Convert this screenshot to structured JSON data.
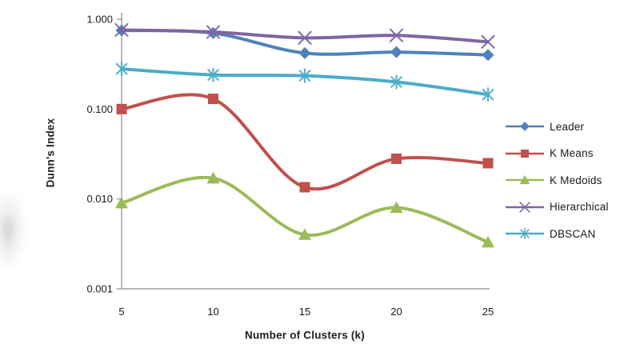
{
  "figure": {
    "background_color": "#ffffff",
    "axis_color": "#8c8c8c",
    "text_color": "#1a1a1a"
  },
  "chart_data": {
    "type": "line",
    "title": "",
    "xlabel": "Number of Clusters (k)",
    "ylabel": "Dunn's Index",
    "x_categories": [
      "5",
      "10",
      "15",
      "20",
      "25"
    ],
    "x_values": [
      5,
      10,
      15,
      20,
      25
    ],
    "y_scale": "log",
    "ylim": [
      0.001,
      1.0
    ],
    "y_ticks": [
      {
        "value": 1.0,
        "label": "1.000"
      },
      {
        "value": 0.1,
        "label": "0.100"
      },
      {
        "value": 0.01,
        "label": "0.010"
      },
      {
        "value": 0.001,
        "label": "0.001"
      }
    ],
    "grid": false,
    "legend_position": "right",
    "line_style": "smooth",
    "series": [
      {
        "name": "Leader",
        "color": "#4F81BD",
        "marker": "diamond",
        "values": [
          0.75,
          0.7,
          0.42,
          0.43,
          0.4
        ]
      },
      {
        "name": "K Means",
        "color": "#C0504D",
        "marker": "square",
        "values": [
          0.1,
          0.13,
          0.0135,
          0.028,
          0.025
        ]
      },
      {
        "name": "K Medoids",
        "color": "#9BBB59",
        "marker": "triangle",
        "values": [
          0.009,
          0.017,
          0.004,
          0.008,
          0.0033
        ]
      },
      {
        "name": "Hierarchical",
        "color": "#8064A2",
        "marker": "x",
        "values": [
          0.76,
          0.72,
          0.62,
          0.66,
          0.56
        ]
      },
      {
        "name": "DBSCAN",
        "color": "#4BACC6",
        "marker": "asterisk",
        "values": [
          0.28,
          0.24,
          0.235,
          0.2,
          0.145
        ]
      }
    ]
  }
}
